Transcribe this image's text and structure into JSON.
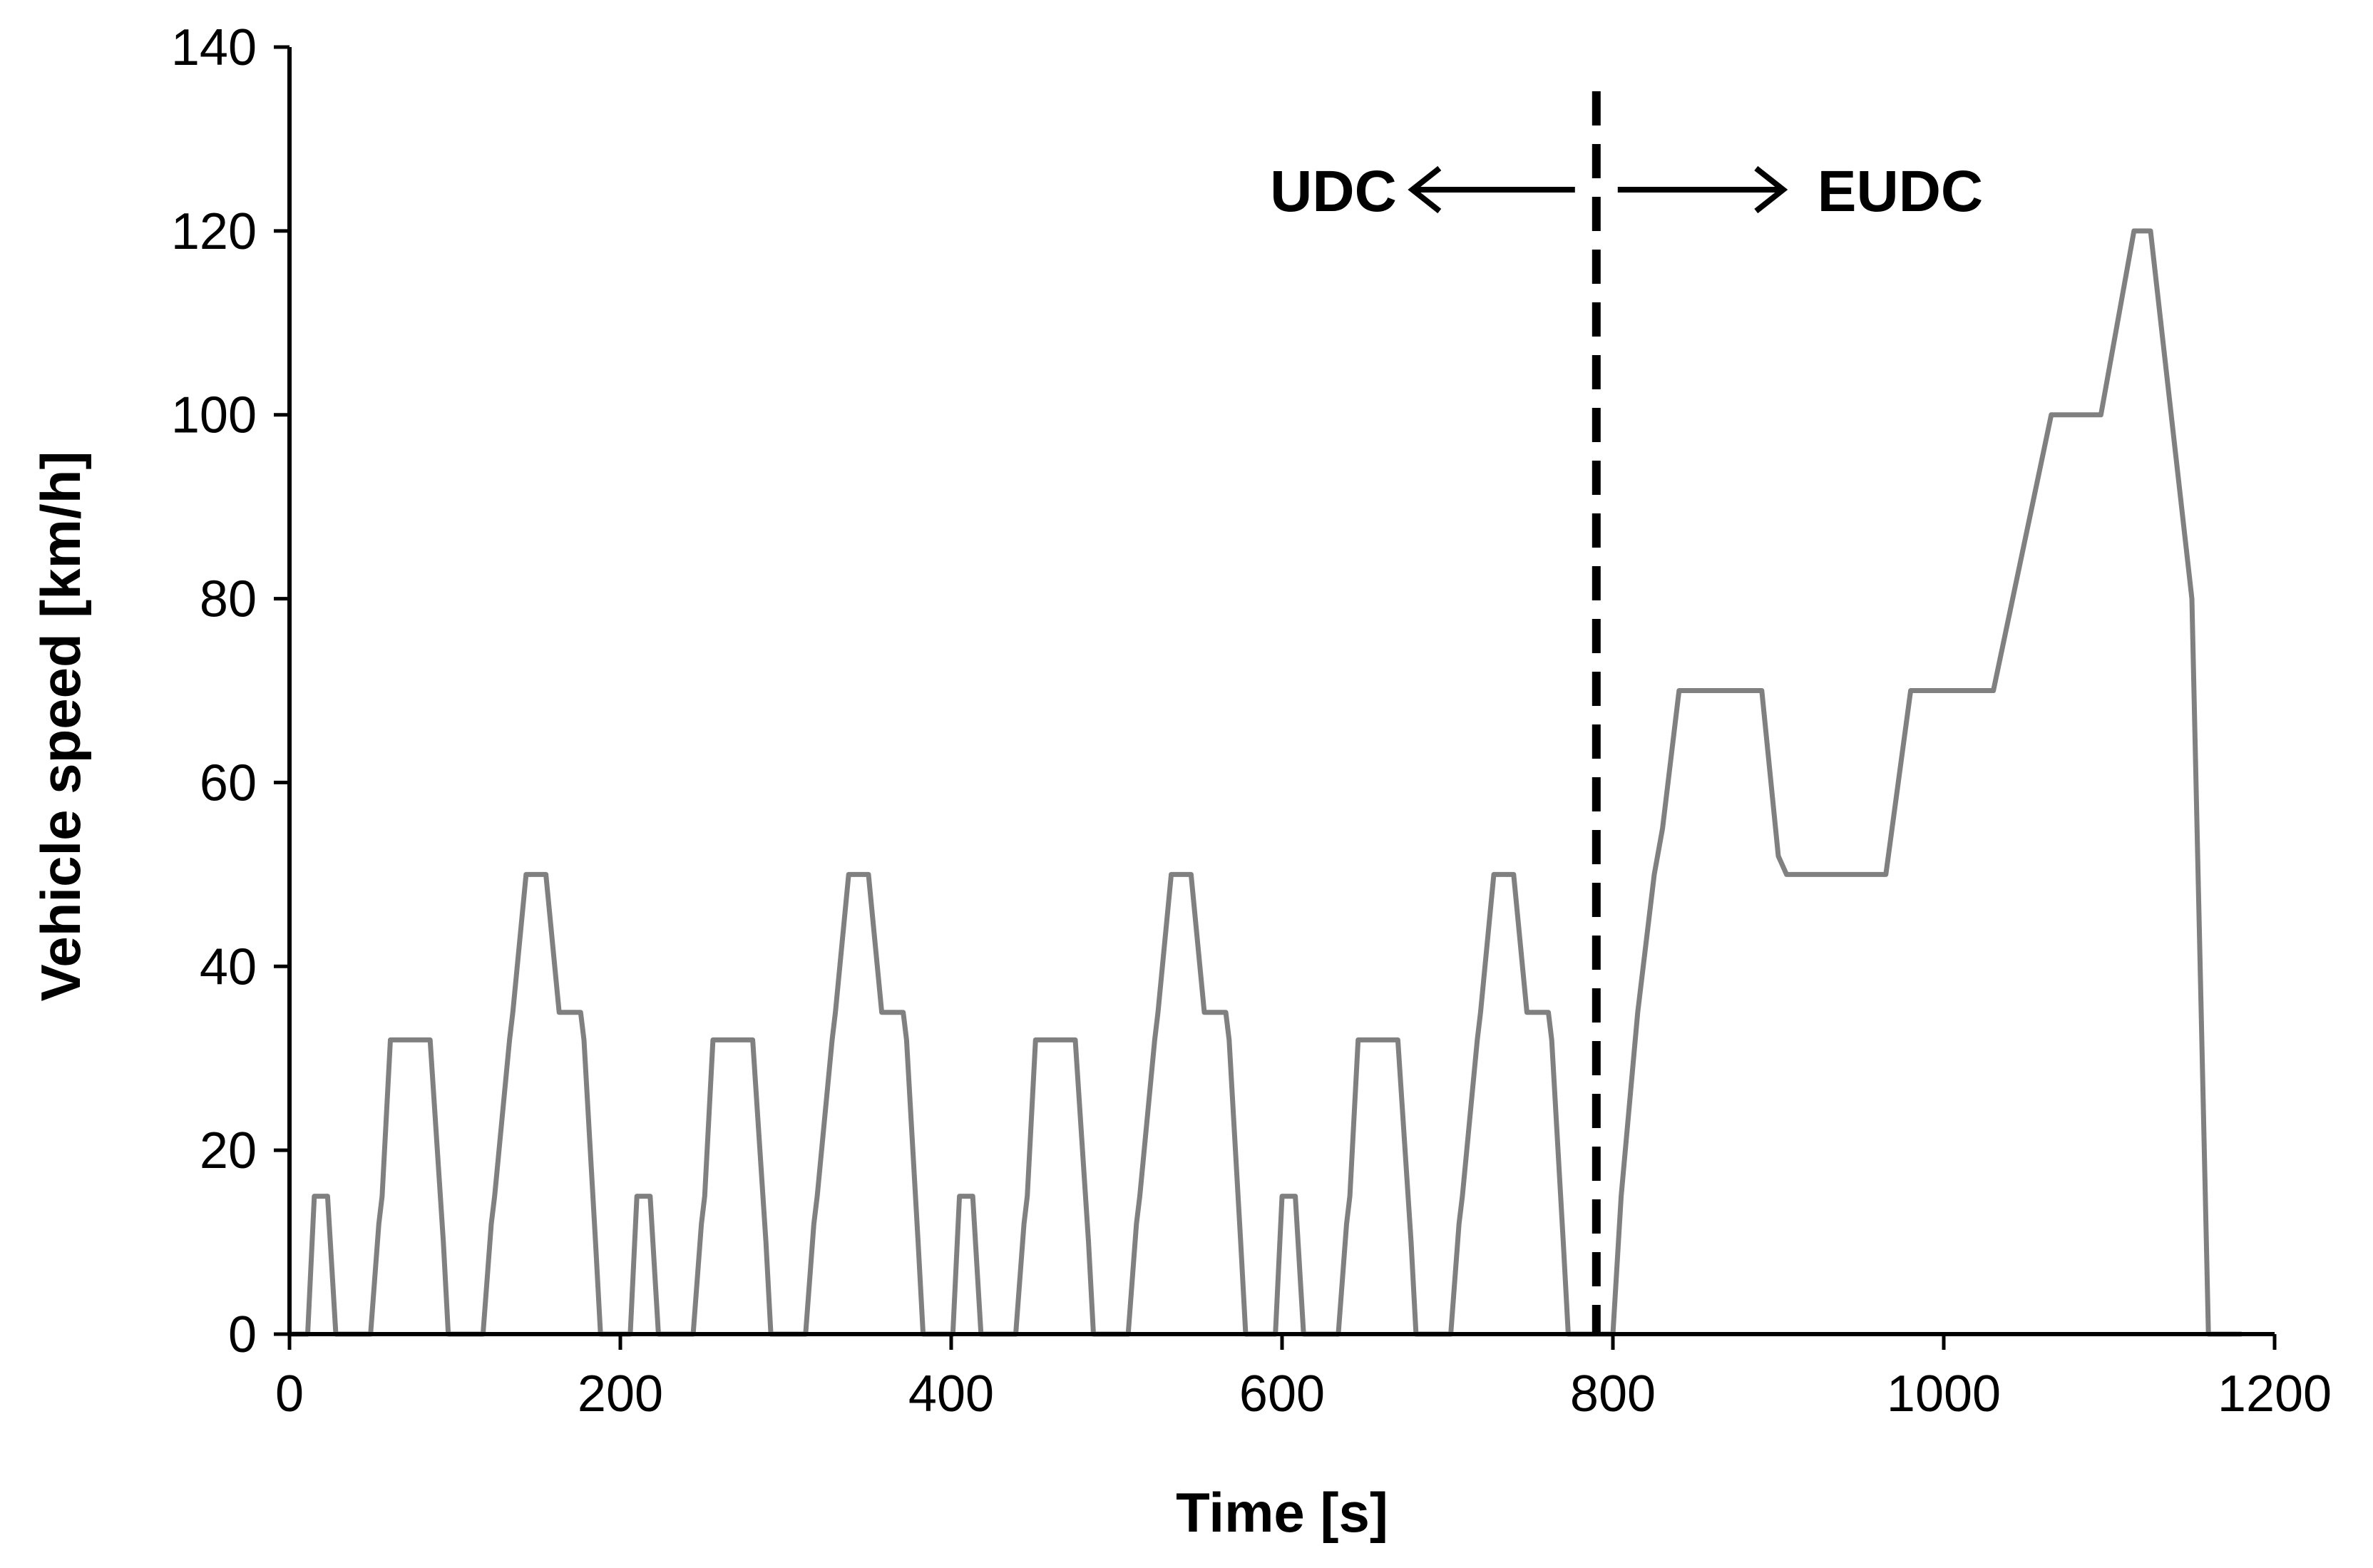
{
  "chart_data": {
    "type": "line",
    "title": "",
    "xlabel": "Time [s]",
    "ylabel": "Vehicle speed [km/h]",
    "xlim": [
      0,
      1200
    ],
    "ylim": [
      0,
      140
    ],
    "xticks": [
      0,
      200,
      400,
      600,
      800,
      1000,
      1200
    ],
    "yticks": [
      0,
      20,
      40,
      60,
      80,
      100,
      120,
      140
    ],
    "xtick_labels": [
      "0",
      "200",
      "400",
      "600",
      "800",
      "1000",
      "1200"
    ],
    "ytick_labels": [
      "0",
      "20",
      "40",
      "60",
      "80",
      "100",
      "120",
      "140"
    ],
    "grid": false,
    "legend": "none",
    "series_color": "#808080",
    "elementary_cycle": {
      "x": [
        0,
        11,
        15,
        23,
        28,
        49,
        54,
        56,
        61,
        85,
        93,
        96,
        117,
        122,
        124,
        133,
        135,
        143,
        155,
        163,
        176,
        178,
        185,
        188,
        195
      ],
      "y": [
        0,
        0,
        15,
        15,
        0,
        0,
        12,
        15,
        32,
        32,
        10,
        0,
        0,
        12,
        15,
        32,
        35,
        50,
        50,
        35,
        35,
        32,
        10,
        0,
        0
      ]
    },
    "elementary_cycle_starts": [
      0,
      195,
      390,
      585
    ],
    "eudc": {
      "x": [
        780,
        800,
        805,
        815,
        825,
        830,
        840,
        850,
        890,
        900,
        905,
        965,
        980,
        1030,
        1065,
        1095,
        1115,
        1125,
        1150,
        1160,
        1180
      ],
      "y": [
        0,
        0,
        15,
        35,
        50,
        55,
        70,
        70,
        70,
        52,
        50,
        50,
        70,
        70,
        100,
        100,
        120,
        120,
        80,
        0,
        0
      ]
    },
    "divider_x": 790,
    "annotations": [
      {
        "text": "UDC",
        "direction": "left"
      },
      {
        "text": "EUDC",
        "direction": "right"
      }
    ]
  }
}
